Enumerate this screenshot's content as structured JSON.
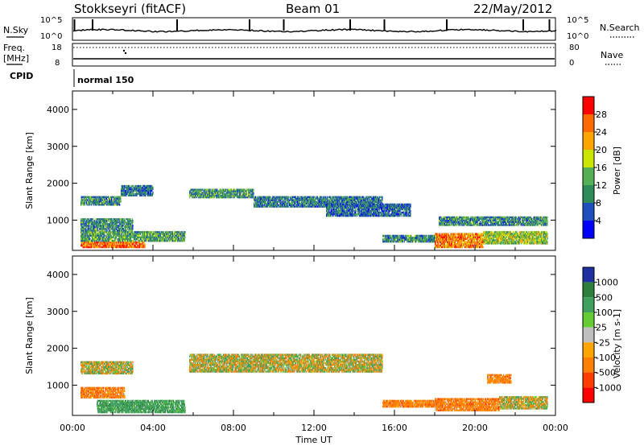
{
  "header": {
    "station": "Stokkseyri (fitACF)",
    "beam": "Beam 01",
    "date": "22/May/2012"
  },
  "noise_panel": {
    "left_label": "N.Sky",
    "right_label": "N.Search",
    "left_ticks": [
      "10^5",
      "10^0"
    ],
    "right_ticks": [
      "10^5",
      "10^0"
    ]
  },
  "freq_panel": {
    "left_label_1": "Freq.",
    "left_label_2": "[MHz]",
    "right_label": "Nave",
    "left_ticks": [
      "18",
      "8"
    ],
    "right_ticks": [
      "80",
      "0"
    ]
  },
  "cpid_panel": {
    "label": "CPID",
    "mode": "normal 150"
  },
  "axes": {
    "xlabel": "Time UT",
    "x_ticks": [
      "00:00",
      "04:00",
      "08:00",
      "12:00",
      "16:00",
      "20:00",
      "00:00"
    ],
    "x_range_hours": [
      0,
      24
    ],
    "ylabel": "Slant Range [km]",
    "y_ticks": [
      "1000",
      "2000",
      "3000",
      "4000"
    ],
    "y_tick_values": [
      1000,
      2000,
      3000,
      4000
    ],
    "y_range_km": [
      180,
      4500
    ]
  },
  "power_colorbar": {
    "label": "Power [dB]",
    "ticks": [
      "4",
      "8",
      "12",
      "16",
      "20",
      "24",
      "28"
    ],
    "colors": [
      "#0000ff",
      "#1f4fbf",
      "#2e8b57",
      "#55b055",
      "#c8e600",
      "#ffa500",
      "#ff6a00",
      "#ff0000"
    ]
  },
  "velocity_colorbar": {
    "label": "Velocity [m s-1]",
    "ticks": [
      "1000",
      "500",
      "100",
      "25",
      "-25",
      "-100",
      "-500",
      "-1000"
    ],
    "colors": [
      "#2030a0",
      "#2e7f3c",
      "#3fa060",
      "#66cc33",
      "#bfbfbf",
      "#ffa500",
      "#ff7f00",
      "#ff3c00",
      "#ff0000"
    ]
  },
  "chart_data": {
    "type": "heatmap",
    "xlabel": "Time UT",
    "ylabel": "Slant Range [km]",
    "x_unit": "hours UT",
    "xlim": [
      0,
      24
    ],
    "ylim": [
      180,
      4500
    ],
    "power_bands": [
      {
        "t0": 0.4,
        "t1": 3.6,
        "r0": 250,
        "r1": 420,
        "dB": 26
      },
      {
        "t0": 0.4,
        "t1": 5.6,
        "r0": 420,
        "r1": 700,
        "dB": 12
      },
      {
        "t0": 0.4,
        "t1": 3.0,
        "r0": 700,
        "r1": 1050,
        "dB": 10
      },
      {
        "t0": 0.4,
        "t1": 2.4,
        "r0": 1400,
        "r1": 1650,
        "dB": 10
      },
      {
        "t0": 2.4,
        "t1": 4.0,
        "r0": 1650,
        "r1": 1950,
        "dB": 9
      },
      {
        "t0": 5.8,
        "t1": 9.0,
        "r0": 1600,
        "r1": 1850,
        "dB": 11
      },
      {
        "t0": 9.0,
        "t1": 15.4,
        "r0": 1350,
        "r1": 1650,
        "dB": 9
      },
      {
        "t0": 12.6,
        "t1": 16.8,
        "r0": 1100,
        "r1": 1450,
        "dB": 8
      },
      {
        "t0": 15.4,
        "t1": 18.4,
        "r0": 400,
        "r1": 600,
        "dB": 10
      },
      {
        "t0": 18.0,
        "t1": 20.4,
        "r0": 250,
        "r1": 650,
        "dB": 24
      },
      {
        "t0": 20.4,
        "t1": 23.6,
        "r0": 350,
        "r1": 700,
        "dB": 16
      },
      {
        "t0": 18.2,
        "t1": 23.6,
        "r0": 850,
        "r1": 1100,
        "dB": 10
      }
    ],
    "velocity_bands": [
      {
        "t0": 0.4,
        "t1": 3.0,
        "r0": 1300,
        "r1": 1650,
        "v": 0
      },
      {
        "t0": 0.4,
        "t1": 2.6,
        "r0": 650,
        "r1": 950,
        "v": -300
      },
      {
        "t0": 1.2,
        "t1": 5.6,
        "r0": 250,
        "r1": 600,
        "v": 300
      },
      {
        "t0": 5.8,
        "t1": 15.4,
        "r0": 1350,
        "r1": 1850,
        "v": 0
      },
      {
        "t0": 15.4,
        "t1": 18.4,
        "r0": 400,
        "r1": 600,
        "v": -300
      },
      {
        "t0": 18.0,
        "t1": 21.2,
        "r0": 300,
        "r1": 650,
        "v": -300
      },
      {
        "t0": 21.2,
        "t1": 23.6,
        "r0": 350,
        "r1": 700,
        "v": 0
      },
      {
        "t0": 20.6,
        "t1": 21.8,
        "r0": 1050,
        "r1": 1300,
        "v": -300
      }
    ]
  }
}
